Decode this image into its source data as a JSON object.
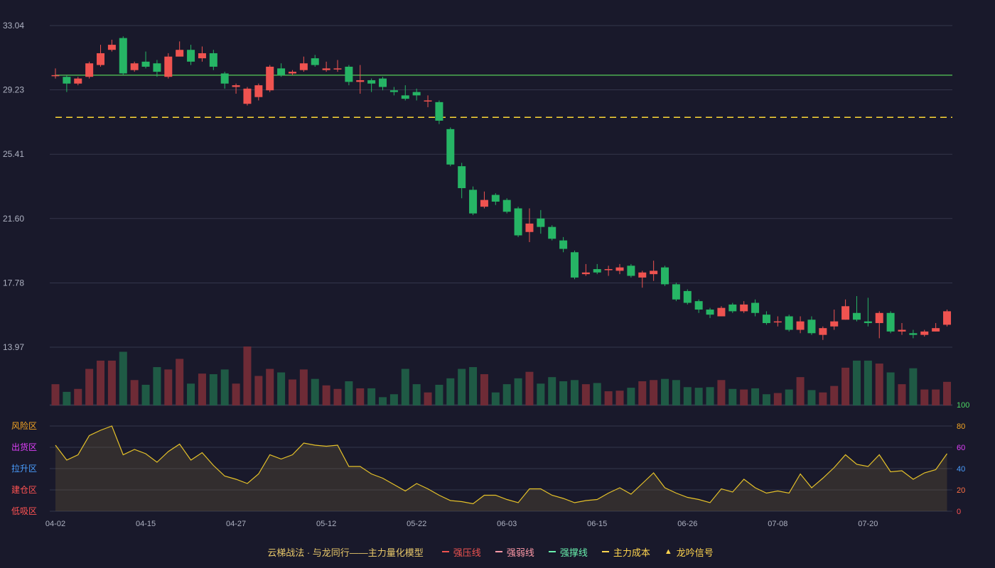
{
  "legend": {
    "title": "云梯战法 · 与龙同行——主力量化模型",
    "items": [
      {
        "label": "强压线",
        "color": "#ef5350",
        "style": "solid"
      },
      {
        "label": "强弱线",
        "color": "#ff9aa8",
        "style": "dashed"
      },
      {
        "label": "强撑线",
        "color": "#69f0ae",
        "style": "solid"
      },
      {
        "label": "主力成本",
        "color": "#ffd54f",
        "style": "dashed"
      },
      {
        "label": "龙吟信号",
        "color": "#ffd54f",
        "style": "triangle"
      }
    ]
  },
  "chart_data": {
    "type": "candlestick",
    "price_axis": {
      "ticks": [
        "33.04",
        "29.23",
        "25.41",
        "21.60",
        "17.78",
        "13.97"
      ],
      "range": [
        13.97,
        33.04
      ]
    },
    "x_ticks": [
      {
        "label": "04-02",
        "index": 0
      },
      {
        "label": "04-15",
        "index": 8
      },
      {
        "label": "04-27",
        "index": 16
      },
      {
        "label": "05-12",
        "index": 24
      },
      {
        "label": "05-22",
        "index": 32
      },
      {
        "label": "06-03",
        "index": 40
      },
      {
        "label": "06-15",
        "index": 48
      },
      {
        "label": "06-26",
        "index": 56
      },
      {
        "label": "07-08",
        "index": 64
      },
      {
        "label": "07-20",
        "index": 72
      }
    ],
    "reference_lines": [
      {
        "name": "强撑线",
        "value": 30.1,
        "color": "#4caf50",
        "style": "solid"
      },
      {
        "name": "主力成本",
        "value": 27.6,
        "color": "#fdd835",
        "style": "dashed"
      }
    ],
    "candles": [
      [
        30.1,
        30.1,
        30.5,
        29.9
      ],
      [
        30.0,
        29.6,
        30.1,
        29.1
      ],
      [
        29.6,
        29.9,
        30.0,
        29.5
      ],
      [
        30.0,
        30.8,
        30.9,
        29.9
      ],
      [
        30.7,
        31.4,
        31.9,
        30.6
      ],
      [
        31.6,
        31.9,
        32.2,
        31.5
      ],
      [
        32.3,
        30.2,
        32.4,
        30.1
      ],
      [
        30.4,
        30.8,
        30.9,
        30.3
      ],
      [
        30.9,
        30.6,
        31.5,
        30.5
      ],
      [
        30.8,
        30.3,
        31.0,
        30.0
      ],
      [
        30.0,
        31.2,
        31.4,
        29.9
      ],
      [
        31.2,
        31.6,
        32.1,
        31.3
      ],
      [
        31.6,
        30.9,
        31.9,
        30.7
      ],
      [
        31.1,
        31.4,
        31.8,
        30.9
      ],
      [
        31.4,
        30.6,
        31.6,
        30.4
      ],
      [
        30.2,
        29.6,
        30.3,
        29.3
      ],
      [
        29.4,
        29.5,
        29.6,
        29.0
      ],
      [
        28.4,
        29.3,
        29.4,
        28.3
      ],
      [
        28.8,
        29.5,
        29.6,
        28.6
      ],
      [
        29.2,
        30.6,
        30.7,
        29.1
      ],
      [
        30.5,
        30.1,
        30.8,
        30.0
      ],
      [
        30.2,
        30.3,
        30.4,
        30.1
      ],
      [
        30.4,
        30.8,
        31.2,
        30.3
      ],
      [
        31.1,
        30.7,
        31.3,
        30.6
      ],
      [
        30.4,
        30.5,
        30.9,
        30.3
      ],
      [
        30.5,
        30.5,
        31.0,
        30.3
      ],
      [
        30.6,
        29.7,
        30.7,
        29.5
      ],
      [
        29.7,
        29.8,
        30.7,
        29.0
      ],
      [
        29.8,
        29.6,
        29.9,
        29.1
      ],
      [
        29.9,
        29.4,
        30.0,
        29.2
      ],
      [
        29.2,
        29.1,
        29.4,
        28.9
      ],
      [
        28.9,
        28.7,
        29.5,
        28.6
      ],
      [
        29.1,
        28.9,
        29.3,
        28.6
      ],
      [
        28.6,
        28.6,
        28.9,
        28.2
      ],
      [
        28.5,
        27.4,
        28.6,
        27.2
      ],
      [
        26.9,
        24.8,
        27.0,
        24.7
      ],
      [
        24.7,
        23.4,
        24.9,
        22.8
      ],
      [
        23.3,
        21.9,
        23.5,
        21.8
      ],
      [
        22.3,
        22.7,
        23.2,
        22.2
      ],
      [
        23.0,
        22.6,
        23.1,
        22.4
      ],
      [
        22.7,
        22.0,
        22.8,
        21.9
      ],
      [
        22.2,
        20.6,
        22.3,
        20.5
      ],
      [
        20.8,
        21.3,
        22.2,
        20.2
      ],
      [
        21.6,
        21.1,
        22.1,
        20.7
      ],
      [
        21.1,
        20.4,
        21.2,
        20.3
      ],
      [
        20.3,
        19.8,
        20.5,
        19.6
      ],
      [
        19.6,
        18.1,
        19.7,
        18.0
      ],
      [
        18.3,
        18.4,
        18.9,
        18.2
      ],
      [
        18.6,
        18.4,
        18.9,
        18.3
      ],
      [
        18.6,
        18.6,
        18.8,
        18.2
      ],
      [
        18.5,
        18.7,
        18.9,
        18.3
      ],
      [
        18.8,
        18.2,
        18.9,
        18.1
      ],
      [
        18.1,
        18.4,
        18.5,
        17.5
      ],
      [
        18.3,
        18.5,
        19.1,
        17.9
      ],
      [
        18.7,
        17.7,
        18.8,
        17.6
      ],
      [
        17.7,
        16.8,
        17.8,
        16.7
      ],
      [
        17.3,
        16.6,
        17.4,
        16.5
      ],
      [
        16.7,
        16.2,
        16.8,
        16.0
      ],
      [
        16.2,
        15.9,
        16.3,
        15.7
      ],
      [
        15.8,
        16.3,
        16.4,
        15.8
      ],
      [
        16.5,
        16.1,
        16.6,
        16.0
      ],
      [
        16.1,
        16.5,
        16.7,
        16.0
      ],
      [
        16.6,
        16.0,
        16.8,
        15.8
      ],
      [
        15.9,
        15.4,
        16.1,
        15.3
      ],
      [
        15.5,
        15.5,
        15.8,
        15.2
      ],
      [
        15.8,
        15.0,
        15.9,
        14.9
      ],
      [
        15.0,
        15.5,
        15.8,
        14.8
      ],
      [
        15.6,
        14.8,
        15.8,
        14.7
      ],
      [
        14.7,
        15.1,
        15.2,
        14.4
      ],
      [
        15.2,
        15.5,
        16.2,
        15.0
      ],
      [
        15.6,
        16.4,
        16.8,
        15.6
      ],
      [
        16.0,
        15.6,
        17.0,
        15.5
      ],
      [
        15.5,
        15.4,
        16.9,
        15.2
      ],
      [
        15.4,
        16.0,
        16.1,
        14.5
      ],
      [
        16.0,
        14.9,
        16.1,
        14.8
      ],
      [
        14.9,
        15.0,
        15.4,
        14.7
      ],
      [
        14.8,
        14.7,
        15.0,
        14.5
      ],
      [
        14.7,
        14.9,
        15.0,
        14.6
      ],
      [
        14.9,
        15.1,
        15.4,
        14.9
      ],
      [
        15.3,
        16.1,
        16.2,
        15.2
      ]
    ],
    "volume": [
      0.36,
      0.23,
      0.28,
      0.62,
      0.76,
      0.76,
      0.91,
      0.43,
      0.35,
      0.65,
      0.61,
      0.79,
      0.37,
      0.54,
      0.53,
      0.61,
      0.37,
      1.0,
      0.5,
      0.62,
      0.56,
      0.44,
      0.61,
      0.45,
      0.34,
      0.28,
      0.41,
      0.29,
      0.29,
      0.14,
      0.19,
      0.62,
      0.36,
      0.22,
      0.35,
      0.46,
      0.62,
      0.65,
      0.53,
      0.22,
      0.36,
      0.46,
      0.57,
      0.37,
      0.48,
      0.41,
      0.43,
      0.36,
      0.38,
      0.24,
      0.25,
      0.3,
      0.41,
      0.43,
      0.45,
      0.43,
      0.31,
      0.3,
      0.31,
      0.43,
      0.28,
      0.27,
      0.29,
      0.19,
      0.21,
      0.27,
      0.48,
      0.26,
      0.22,
      0.33,
      0.64,
      0.76,
      0.76,
      0.71,
      0.56,
      0.36,
      0.63,
      0.27,
      0.27,
      0.4
    ],
    "indicator": {
      "range": [
        0,
        100
      ],
      "ticks": [
        0,
        20,
        40,
        60,
        80,
        100
      ],
      "zones": [
        {
          "label": "风险区",
          "value": 80,
          "color": "#f5a623"
        },
        {
          "label": "出货区",
          "value": 60,
          "color": "#e040fb"
        },
        {
          "label": "拉升区",
          "value": 40,
          "color": "#4a9eff"
        },
        {
          "label": "建仓区",
          "value": 20,
          "color": "#ff5252"
        },
        {
          "label": "低吸区",
          "value": 0,
          "color": "#ff5252"
        }
      ],
      "values": [
        62,
        48,
        53,
        71,
        76,
        80,
        53,
        58,
        54,
        46,
        56,
        63,
        48,
        55,
        43,
        33,
        30,
        26,
        35,
        53,
        49,
        53,
        64,
        62,
        61,
        62,
        42,
        42,
        35,
        31,
        25,
        19,
        26,
        21,
        15,
        10,
        9,
        7,
        15,
        15,
        11,
        8,
        21,
        21,
        15,
        12,
        8,
        10,
        11,
        17,
        22,
        16,
        26,
        36,
        22,
        17,
        13,
        11,
        8,
        21,
        18,
        30,
        22,
        17,
        19,
        17,
        35,
        22,
        31,
        41,
        53,
        44,
        42,
        53,
        37,
        38,
        30,
        36,
        39,
        54
      ]
    }
  }
}
